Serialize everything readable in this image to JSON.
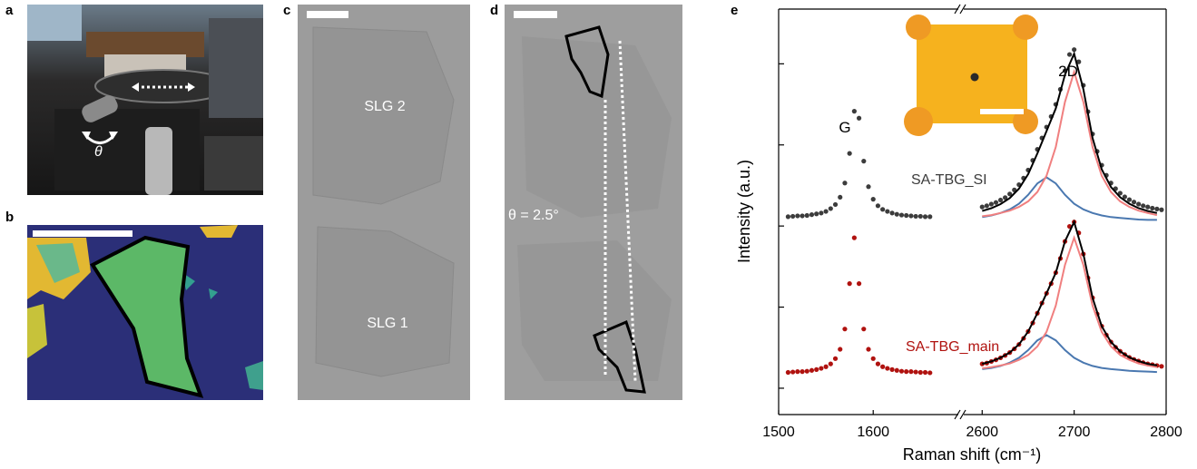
{
  "panels": [
    {
      "label": "a",
      "annotations": [
        "θ"
      ]
    },
    {
      "label": "b"
    },
    {
      "label": "c",
      "annotations": [
        "SLG 2",
        "SLG 1"
      ]
    },
    {
      "label": "d",
      "annotations": [
        "θ = 2.5°"
      ]
    },
    {
      "label": "e"
    }
  ],
  "chart_data": {
    "type": "scatter",
    "xlabel": "Raman shift (cm⁻¹)",
    "ylabel": "Intensity (a.u.)",
    "annotations": [
      "G",
      "2D"
    ],
    "x_segments": [
      {
        "xlim": [
          1500,
          1690
        ],
        "xticks": [
          1500,
          1600
        ]
      },
      {
        "xlim": [
          2580,
          2800
        ],
        "xticks": [
          2600,
          2700,
          2800
        ]
      }
    ],
    "ylim": [
      -6.5,
      93.5
    ],
    "yticks": [
      0,
      20,
      40,
      60,
      80
    ],
    "series": [
      {
        "name": "SA-TBG_SI",
        "style": "dots",
        "color": "#3c3c3c",
        "x": [
          1510,
          1515,
          1520,
          1525,
          1530,
          1535,
          1540,
          1545,
          1550,
          1555,
          1560,
          1565,
          1570,
          1575,
          1580,
          1585,
          1590,
          1595,
          1600,
          1605,
          1610,
          1615,
          1620,
          1625,
          1630,
          1635,
          1640,
          1645,
          1650,
          1655,
          1660,
          2600,
          2605,
          2610,
          2615,
          2620,
          2625,
          2630,
          2635,
          2640,
          2645,
          2650,
          2655,
          2660,
          2665,
          2670,
          2675,
          2680,
          2685,
          2690,
          2695,
          2700,
          2705,
          2710,
          2715,
          2720,
          2725,
          2730,
          2735,
          2740,
          2745,
          2750,
          2755,
          2760,
          2765,
          2770,
          2775,
          2780,
          2785,
          2790,
          2795
        ],
        "values": [
          42.3,
          42.4,
          42.5,
          42.5,
          42.6,
          42.8,
          43.0,
          43.2,
          43.6,
          44.3,
          45.3,
          47.1,
          50.6,
          57.9,
          68.3,
          66.6,
          56,
          49.7,
          46.6,
          45.0,
          44.1,
          43.6,
          43.2,
          42.9,
          42.7,
          42.6,
          42.5,
          42.4,
          42.4,
          42.3,
          42.3,
          44.7,
          45.0,
          45.4,
          45.8,
          46.4,
          47.0,
          47.9,
          48.9,
          50.2,
          51.8,
          53.8,
          56.2,
          58.9,
          61.7,
          64.4,
          67.0,
          70.0,
          73.7,
          78.3,
          82.3,
          83.5,
          80.5,
          74.7,
          68.2,
          62.7,
          58.4,
          55.0,
          52.5,
          50.6,
          49.2,
          48.1,
          47.2,
          46.5,
          45.9,
          45.4,
          45.0,
          44.7,
          44.4,
          44.2,
          44.0
        ]
      },
      {
        "name": "SA-TBG_main",
        "style": "dots",
        "color": "#b0120f",
        "x": [
          1510,
          1515,
          1520,
          1525,
          1530,
          1535,
          1540,
          1545,
          1550,
          1555,
          1560,
          1565,
          1570,
          1575,
          1580,
          1585,
          1590,
          1595,
          1600,
          1605,
          1610,
          1615,
          1620,
          1625,
          1630,
          1635,
          1640,
          1645,
          1650,
          1655,
          1660,
          2600,
          2605,
          2610,
          2615,
          2620,
          2625,
          2630,
          2635,
          2640,
          2645,
          2650,
          2655,
          2660,
          2665,
          2670,
          2675,
          2680,
          2685,
          2690,
          2695,
          2700,
          2705,
          2710,
          2715,
          2720,
          2725,
          2730,
          2735,
          2740,
          2745,
          2750,
          2755,
          2760,
          2765,
          2770,
          2775,
          2780,
          2785,
          2790,
          2795
        ],
        "values": [
          3.9,
          4.0,
          4.1,
          4.1,
          4.2,
          4.4,
          4.6,
          4.9,
          5.3,
          6.0,
          7.3,
          9.6,
          14.6,
          25.8,
          37.1,
          25.8,
          14.6,
          9.6,
          7.3,
          6.0,
          5.3,
          4.9,
          4.6,
          4.4,
          4.2,
          4.1,
          4.1,
          4.0,
          3.9,
          3.9,
          3.8,
          6.0,
          6.2,
          6.6,
          7.0,
          7.5,
          8.1,
          8.8,
          9.7,
          10.8,
          12.3,
          14.0,
          16.1,
          18.5,
          21.0,
          23.4,
          25.8,
          28.5,
          32.0,
          36.2,
          39.9,
          41.0,
          38.3,
          33.1,
          27.2,
          22.3,
          18.3,
          15.3,
          13.1,
          11.4,
          10.1,
          9.1,
          8.3,
          7.6,
          7.1,
          6.7,
          6.3,
          6.0,
          5.8,
          5.6,
          5.4
        ]
      },
      {
        "style": "line",
        "color": "#4a78b0",
        "x": [
          2600,
          2610,
          2620,
          2630,
          2640,
          2650,
          2660,
          2670,
          2680,
          2690,
          2700,
          2710,
          2720,
          2730,
          2740,
          2750,
          2760,
          2770,
          2780,
          2790
        ],
        "values": [
          42.2,
          42.6,
          43.2,
          44.1,
          45.5,
          47.7,
          50.5,
          52.0,
          50.5,
          47.7,
          45.5,
          44.1,
          43.2,
          42.6,
          42.2,
          42.0,
          41.8,
          41.6,
          41.5,
          41.5
        ]
      },
      {
        "style": "line",
        "color": "#f07f7f",
        "x": [
          2600,
          2610,
          2620,
          2630,
          2640,
          2650,
          2660,
          2670,
          2680,
          2690,
          2700,
          2710,
          2720,
          2730,
          2740,
          2750,
          2760,
          2770,
          2780,
          2790
        ],
        "values": [
          42.4,
          42.7,
          43.2,
          43.8,
          44.7,
          46.1,
          48.4,
          52.4,
          59.5,
          70.6,
          78.0,
          70.6,
          59.5,
          52.4,
          48.4,
          46.1,
          44.7,
          43.8,
          43.2,
          42.7
        ]
      },
      {
        "style": "line",
        "color": "#000000",
        "x": [
          2600,
          2610,
          2620,
          2630,
          2640,
          2650,
          2660,
          2670,
          2680,
          2690,
          2700,
          2710,
          2720,
          2730,
          2740,
          2750,
          2760,
          2770,
          2780,
          2790
        ],
        "values": [
          43.7,
          44.4,
          45.4,
          46.9,
          49.2,
          52.8,
          57.9,
          63.4,
          69.0,
          77.3,
          82.5,
          73.7,
          61.7,
          54.0,
          49.6,
          47.1,
          45.5,
          44.4,
          43.7,
          43.2
        ]
      },
      {
        "style": "line",
        "color": "#4a78b0",
        "x": [
          2600,
          2610,
          2620,
          2630,
          2640,
          2650,
          2660,
          2670,
          2680,
          2690,
          2700,
          2710,
          2720,
          2730,
          2740,
          2750,
          2760,
          2770,
          2780,
          2790
        ],
        "values": [
          4.7,
          5.0,
          5.5,
          6.3,
          7.5,
          9.4,
          11.8,
          13.1,
          11.8,
          9.4,
          7.5,
          6.3,
          5.5,
          5.0,
          4.7,
          4.5,
          4.3,
          4.2,
          4.1,
          4.0
        ]
      },
      {
        "style": "line",
        "color": "#f07f7f",
        "x": [
          2600,
          2610,
          2620,
          2630,
          2640,
          2650,
          2660,
          2670,
          2680,
          2690,
          2700,
          2710,
          2720,
          2730,
          2740,
          2750,
          2760,
          2770,
          2780,
          2790
        ],
        "values": [
          4.9,
          5.2,
          5.6,
          6.1,
          7.0,
          8.2,
          10.3,
          13.9,
          20.4,
          30.4,
          37.1,
          30.4,
          20.4,
          13.9,
          10.3,
          8.2,
          7.0,
          6.1,
          5.6,
          5.2
        ]
      },
      {
        "style": "line",
        "color": "#000000",
        "x": [
          2600,
          2610,
          2620,
          2630,
          2640,
          2650,
          2660,
          2670,
          2680,
          2690,
          2700,
          2710,
          2720,
          2730,
          2740,
          2750,
          2760,
          2770,
          2780,
          2790
        ],
        "values": [
          6.0,
          6.6,
          7.5,
          8.8,
          10.8,
          14.0,
          18.5,
          23.4,
          28.5,
          36.2,
          41.0,
          33.1,
          22.3,
          15.3,
          11.4,
          9.1,
          7.6,
          6.7,
          6.0,
          5.6
        ]
      }
    ]
  }
}
